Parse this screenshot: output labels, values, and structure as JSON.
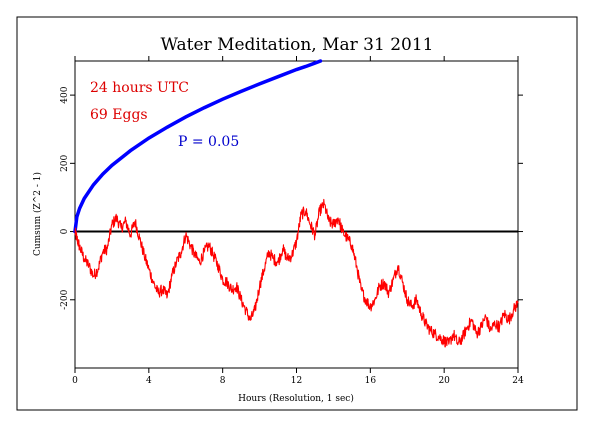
{
  "chart_data": {
    "type": "line",
    "title": "Water Meditation, Mar 31 2011",
    "xlabel": "Hours (Resolution, 1 sec)",
    "ylabel": "Cumsum (Z^2 - 1)",
    "xlim": [
      0,
      24
    ],
    "ylim": [
      -400,
      500
    ],
    "x_ticks": [
      0,
      4,
      8,
      12,
      16,
      20,
      24
    ],
    "y_ticks": [
      -200,
      0,
      200,
      400
    ],
    "grid": false,
    "annotations": {
      "time_span": "24 hours UTC",
      "eggs": "69 Eggs",
      "probability": "P = 0.05"
    },
    "colors": {
      "cumsum": "#ff0000",
      "p05_envelope": "#0000ff",
      "baseline": "#000000"
    },
    "series": [
      {
        "x": [
          0,
          0.1,
          0.25,
          0.5,
          0.75,
          1.0,
          1.25,
          1.5,
          1.75,
          2.0,
          2.25,
          2.5,
          2.75,
          3.0,
          3.25,
          3.5,
          3.75,
          4.0,
          4.25,
          4.5,
          4.75,
          5.0,
          5.25,
          5.5,
          5.75,
          6.0,
          6.25,
          6.5,
          6.75,
          7.0,
          7.25,
          7.5,
          7.75,
          8.0,
          8.25,
          8.5,
          8.75,
          9.0,
          9.25,
          9.5,
          9.75,
          10.0,
          10.25,
          10.5,
          10.75,
          11.0,
          11.25,
          11.5,
          11.75,
          12.0,
          12.25,
          12.5,
          12.75,
          13.0,
          13.25,
          13.5,
          13.75,
          14.0,
          14.25,
          14.5,
          14.75,
          15.0,
          15.25,
          15.5,
          15.75,
          16.0,
          16.25,
          16.5,
          16.75,
          17.0,
          17.25,
          17.5,
          17.75,
          18.0,
          18.25,
          18.5,
          18.75,
          19.0,
          19.25,
          19.5,
          19.75,
          20.0,
          20.25,
          20.5,
          20.75,
          21.0,
          21.25,
          21.5,
          21.75,
          22.0,
          22.25,
          22.5,
          22.75,
          23.0,
          23.25,
          23.5,
          23.75,
          24.0
        ],
        "values": [
          0,
          -20,
          -45,
          -80,
          -100,
          -130,
          -110,
          -60,
          -50,
          20,
          40,
          10,
          30,
          -10,
          30,
          -20,
          -70,
          -110,
          -150,
          -180,
          -170,
          -190,
          -130,
          -90,
          -60,
          -10,
          -40,
          -70,
          -90,
          -60,
          -40,
          -70,
          -100,
          -140,
          -150,
          -170,
          -160,
          -200,
          -230,
          -260,
          -230,
          -160,
          -110,
          -60,
          -80,
          -90,
          -50,
          -80,
          -70,
          -30,
          50,
          60,
          20,
          -10,
          60,
          80,
          30,
          20,
          40,
          0,
          -20,
          -40,
          -100,
          -170,
          -200,
          -220,
          -200,
          -160,
          -150,
          -180,
          -140,
          -100,
          -150,
          -200,
          -220,
          -200,
          -240,
          -270,
          -290,
          -300,
          -310,
          -320,
          -330,
          -300,
          -330,
          -310,
          -280,
          -260,
          -300,
          -280,
          -250,
          -290,
          -270,
          -280,
          -240,
          -260,
          -230,
          -210
        ]
      },
      {
        "x": [
          0,
          0.1,
          0.25,
          0.5,
          1,
          1.5,
          2,
          3,
          4,
          5,
          6,
          7,
          8,
          9,
          10,
          11,
          12,
          12.5,
          13,
          13.3
        ],
        "values": [
          0,
          43,
          68,
          97,
          137,
          168,
          194,
          237,
          274,
          306,
          336,
          363,
          388,
          411,
          433,
          454,
          475,
          484,
          494,
          500
        ]
      }
    ]
  }
}
